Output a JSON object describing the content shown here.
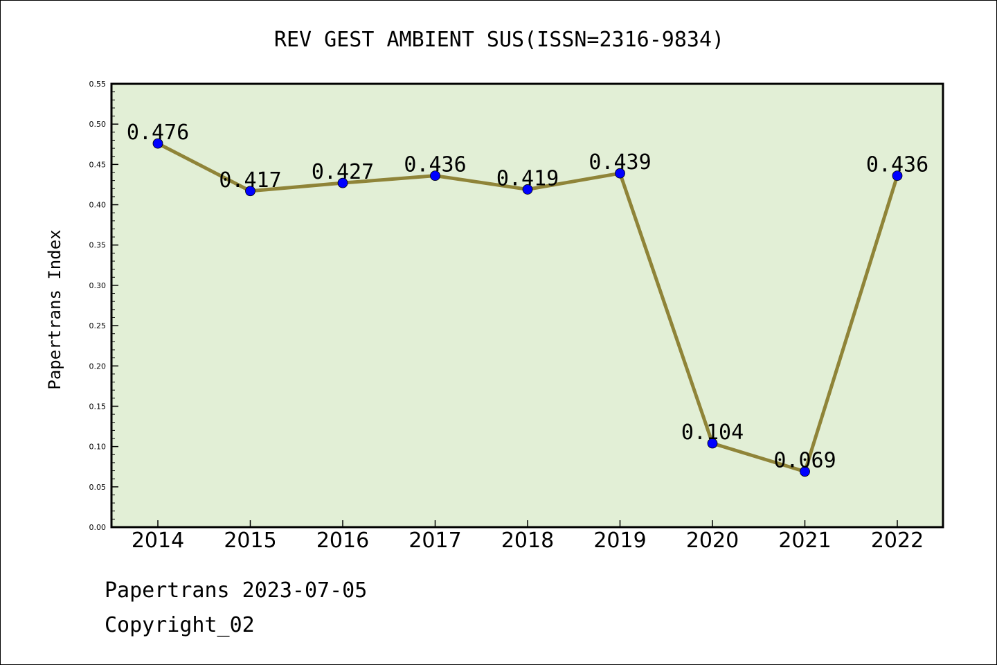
{
  "chart_data": {
    "type": "line",
    "title": "REV GEST AMBIENT SUS(ISSN=2316-9834)",
    "xlabel": "",
    "ylabel": "Papertrans Index",
    "categories": [
      "2014",
      "2015",
      "2016",
      "2017",
      "2018",
      "2019",
      "2020",
      "2021",
      "2022"
    ],
    "values": [
      0.476,
      0.417,
      0.427,
      0.436,
      0.419,
      0.439,
      0.104,
      0.069,
      0.436
    ],
    "value_labels": [
      "0.476",
      "0.417",
      "0.427",
      "0.436",
      "0.419",
      "0.439",
      "0.104",
      "0.069",
      "0.436"
    ],
    "ylim": [
      0,
      0.55
    ],
    "yticks": [
      "0.00",
      "0.05",
      "0.10",
      "0.15",
      "0.20",
      "0.25",
      "0.30",
      "0.35",
      "0.40",
      "0.45",
      "0.50",
      "0.55"
    ],
    "grid": false,
    "legend": "none",
    "colors": {
      "plot_background": "#e2efd6",
      "line": "#8f8438",
      "marker": "#0000ff"
    }
  },
  "footer": {
    "line1": "Papertrans 2023-07-05",
    "line2": "Copyright_02"
  }
}
